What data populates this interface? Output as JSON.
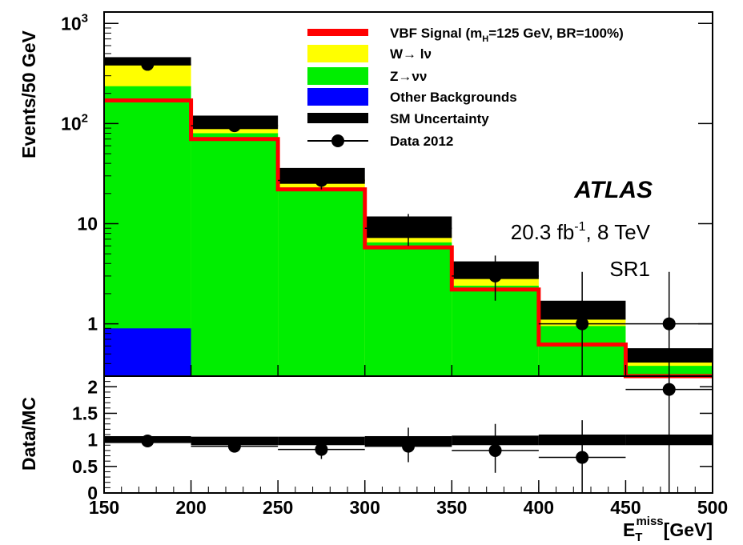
{
  "chart_data": [
    {
      "type": "histogram-stack",
      "panel": "main",
      "ylabel": "Events/50 GeV",
      "yscale": "log",
      "ylim": [
        0.3,
        1300
      ],
      "xlim": [
        150,
        500
      ],
      "bin_edges": [
        150,
        200,
        250,
        300,
        350,
        400,
        450,
        500
      ],
      "yticks": [
        {
          "value": 1000,
          "base": "10",
          "exp": "3"
        },
        {
          "value": 100,
          "base": "10",
          "exp": "2"
        },
        {
          "value": 10,
          "base": "10",
          "exp": ""
        },
        {
          "value": 1,
          "base": "1",
          "exp": ""
        }
      ],
      "stack": [
        {
          "name": "Other Backgrounds",
          "color": "#0000ff",
          "values": [
            0.9,
            0,
            0,
            0,
            0,
            0,
            0
          ]
        },
        {
          "name": "Z→νν",
          "color": "#00ee00",
          "values": [
            235,
            80,
            23,
            6.5,
            2.4,
            0.95,
            0.38
          ]
        },
        {
          "name": "W→ lν",
          "color": "#ffff00",
          "values": [
            150,
            18,
            5,
            1.4,
            0.5,
            0.2,
            0.05
          ]
        }
      ],
      "signal": {
        "name": "VBF Signal (mH=125 GeV, BR=100%)",
        "color": "#ff0000",
        "values": [
          170,
          70,
          22,
          5.8,
          2.2,
          0.62,
          0.28
        ]
      },
      "uncertainty": {
        "name": "SM Uncertainty",
        "color": "#000000",
        "low": [
          380,
          88,
          25,
          7.2,
          2.8,
          1.1,
          0.41
        ],
        "high": [
          460,
          120,
          36,
          11.8,
          4.2,
          1.7,
          0.57
        ]
      },
      "data": {
        "name": "Data 2012",
        "x": [
          175,
          225,
          275,
          325,
          375,
          425,
          475
        ],
        "y": [
          390,
          95,
          27,
          9,
          3,
          1,
          1
        ],
        "err_low": [
          20,
          10,
          5,
          3,
          1.3,
          0.8,
          0.8
        ],
        "err_high": [
          20,
          10,
          5,
          3.5,
          1.8,
          2.3,
          2.3
        ]
      },
      "legend_position": "top-right",
      "annotations": {
        "experiment": "ATLAS",
        "luminosity": "20.3 fb",
        "lumi_exp": "-1",
        "energy": ", 8 TeV",
        "region": "SR1"
      }
    },
    {
      "type": "ratio",
      "panel": "ratio",
      "ylabel": "Data/MC",
      "ylim": [
        0,
        2.2
      ],
      "yticks": [
        "0",
        "0.5",
        "1",
        "1.5",
        "2"
      ],
      "xlabel": "E",
      "xlabel_sub": "T",
      "xlabel_sup": "miss",
      "xlabel_unit": "[GeV]",
      "xticks": [
        "150",
        "200",
        "250",
        "300",
        "350",
        "400",
        "450",
        "500"
      ],
      "band": {
        "low": [
          0.94,
          0.9,
          0.9,
          0.88,
          0.9,
          0.9,
          0.9
        ],
        "high": [
          1.07,
          1.06,
          1.06,
          1.07,
          1.08,
          1.1,
          1.1
        ]
      },
      "data": {
        "x": [
          175,
          225,
          275,
          325,
          375,
          425,
          475
        ],
        "y": [
          0.98,
          0.88,
          0.82,
          0.88,
          0.8,
          0.67,
          1.95
        ],
        "err_low": [
          0.05,
          0.1,
          0.18,
          0.3,
          0.42,
          0.67,
          1.95
        ],
        "err_high": [
          0.05,
          0.1,
          0.18,
          0.35,
          0.5,
          0.7,
          0.25
        ]
      }
    }
  ]
}
